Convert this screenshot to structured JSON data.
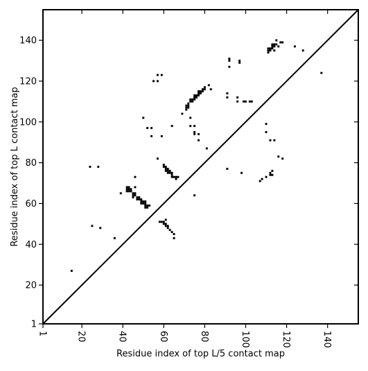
{
  "chart_data": {
    "type": "scatter",
    "marker": "square",
    "color": "#000000",
    "xlabel": "Residue index of top L/5 contact map",
    "ylabel": "Residue index of top L contact map",
    "xlim": [
      1,
      155
    ],
    "ylim": [
      1,
      155
    ],
    "xticks": [
      1,
      20,
      40,
      60,
      80,
      100,
      120,
      140
    ],
    "yticks": [
      1,
      20,
      40,
      60,
      80,
      100,
      120,
      140
    ],
    "x_tick_rotation": -90,
    "diagonal_line": true,
    "grid": false,
    "points": [
      [
        15,
        27
      ],
      [
        24,
        78
      ],
      [
        25,
        49
      ],
      [
        28,
        78
      ],
      [
        29,
        48
      ],
      [
        36,
        43
      ],
      [
        39,
        65
      ],
      [
        42,
        66
      ],
      [
        42,
        67
      ],
      [
        42,
        68
      ],
      [
        43,
        66
      ],
      [
        43,
        67
      ],
      [
        43,
        68
      ],
      [
        44,
        66
      ],
      [
        44,
        67
      ],
      [
        45,
        63
      ],
      [
        45,
        64
      ],
      [
        45,
        65
      ],
      [
        46,
        64
      ],
      [
        46,
        65
      ],
      [
        46,
        73
      ],
      [
        46,
        68
      ],
      [
        47,
        63
      ],
      [
        47,
        62
      ],
      [
        48,
        62
      ],
      [
        48,
        63
      ],
      [
        49,
        62
      ],
      [
        49,
        61
      ],
      [
        49,
        60
      ],
      [
        50,
        60
      ],
      [
        50,
        61
      ],
      [
        51,
        60
      ],
      [
        51,
        59
      ],
      [
        51,
        58
      ],
      [
        52,
        58
      ],
      [
        52,
        59
      ],
      [
        53,
        59
      ],
      [
        51,
        61
      ],
      [
        50,
        102
      ],
      [
        52,
        97
      ],
      [
        54,
        97
      ],
      [
        54,
        93
      ],
      [
        55,
        120
      ],
      [
        57,
        82
      ],
      [
        57,
        120
      ],
      [
        57,
        123
      ],
      [
        59,
        123
      ],
      [
        59,
        93
      ],
      [
        58,
        51
      ],
      [
        59,
        51
      ],
      [
        60,
        51
      ],
      [
        60,
        50
      ],
      [
        61,
        50
      ],
      [
        61,
        52
      ],
      [
        61,
        49
      ],
      [
        62,
        49
      ],
      [
        62,
        48
      ],
      [
        63,
        47
      ],
      [
        64,
        46
      ],
      [
        65,
        45
      ],
      [
        65,
        43
      ],
      [
        60,
        79
      ],
      [
        60,
        78
      ],
      [
        61,
        78
      ],
      [
        61,
        77
      ],
      [
        61,
        76
      ],
      [
        62,
        77
      ],
      [
        62,
        76
      ],
      [
        62,
        75
      ],
      [
        63,
        76
      ],
      [
        63,
        75
      ],
      [
        64,
        74
      ],
      [
        64,
        73
      ],
      [
        64,
        75
      ],
      [
        65,
        73
      ],
      [
        66,
        73
      ],
      [
        67,
        73
      ],
      [
        66,
        72
      ],
      [
        64,
        98
      ],
      [
        69,
        104
      ],
      [
        71,
        106
      ],
      [
        71,
        107
      ],
      [
        71,
        108
      ],
      [
        72,
        107
      ],
      [
        72,
        108
      ],
      [
        72,
        109
      ],
      [
        73,
        110
      ],
      [
        73,
        111
      ],
      [
        74,
        110
      ],
      [
        74,
        111
      ],
      [
        75,
        111
      ],
      [
        75,
        112
      ],
      [
        75,
        113
      ],
      [
        76,
        112
      ],
      [
        76,
        113
      ],
      [
        77,
        113
      ],
      [
        77,
        114
      ],
      [
        77,
        115
      ],
      [
        78,
        114
      ],
      [
        78,
        115
      ],
      [
        79,
        115
      ],
      [
        79,
        116
      ],
      [
        80,
        116
      ],
      [
        80,
        117
      ],
      [
        82,
        118
      ],
      [
        83,
        116
      ],
      [
        73,
        98
      ],
      [
        73,
        102
      ],
      [
        75,
        98
      ],
      [
        75,
        95
      ],
      [
        75,
        94
      ],
      [
        75,
        64
      ],
      [
        77,
        94
      ],
      [
        77,
        91
      ],
      [
        81,
        87
      ],
      [
        91,
        77
      ],
      [
        91,
        112
      ],
      [
        91,
        114
      ],
      [
        92,
        127
      ],
      [
        92,
        130
      ],
      [
        92,
        131
      ],
      [
        96,
        110
      ],
      [
        96,
        112
      ],
      [
        97,
        130
      ],
      [
        97,
        129
      ],
      [
        98,
        75
      ],
      [
        99,
        110
      ],
      [
        100,
        110
      ],
      [
        102,
        110
      ],
      [
        103,
        110
      ],
      [
        107,
        71
      ],
      [
        108,
        72
      ],
      [
        110,
        73
      ],
      [
        110,
        95
      ],
      [
        110,
        99
      ],
      [
        112,
        74
      ],
      [
        112,
        75
      ],
      [
        112,
        91
      ],
      [
        113,
        74
      ],
      [
        113,
        76
      ],
      [
        114,
        91
      ],
      [
        116,
        83
      ],
      [
        118,
        82
      ],
      [
        111,
        134
      ],
      [
        111,
        135
      ],
      [
        111,
        136
      ],
      [
        112,
        135
      ],
      [
        112,
        136
      ],
      [
        113,
        136
      ],
      [
        113,
        137
      ],
      [
        113,
        138
      ],
      [
        114,
        137
      ],
      [
        114,
        138
      ],
      [
        114,
        135
      ],
      [
        115,
        138
      ],
      [
        115,
        140
      ],
      [
        116,
        137
      ],
      [
        117,
        139
      ],
      [
        118,
        139
      ],
      [
        124,
        137
      ],
      [
        128,
        135
      ],
      [
        137,
        124
      ]
    ]
  }
}
